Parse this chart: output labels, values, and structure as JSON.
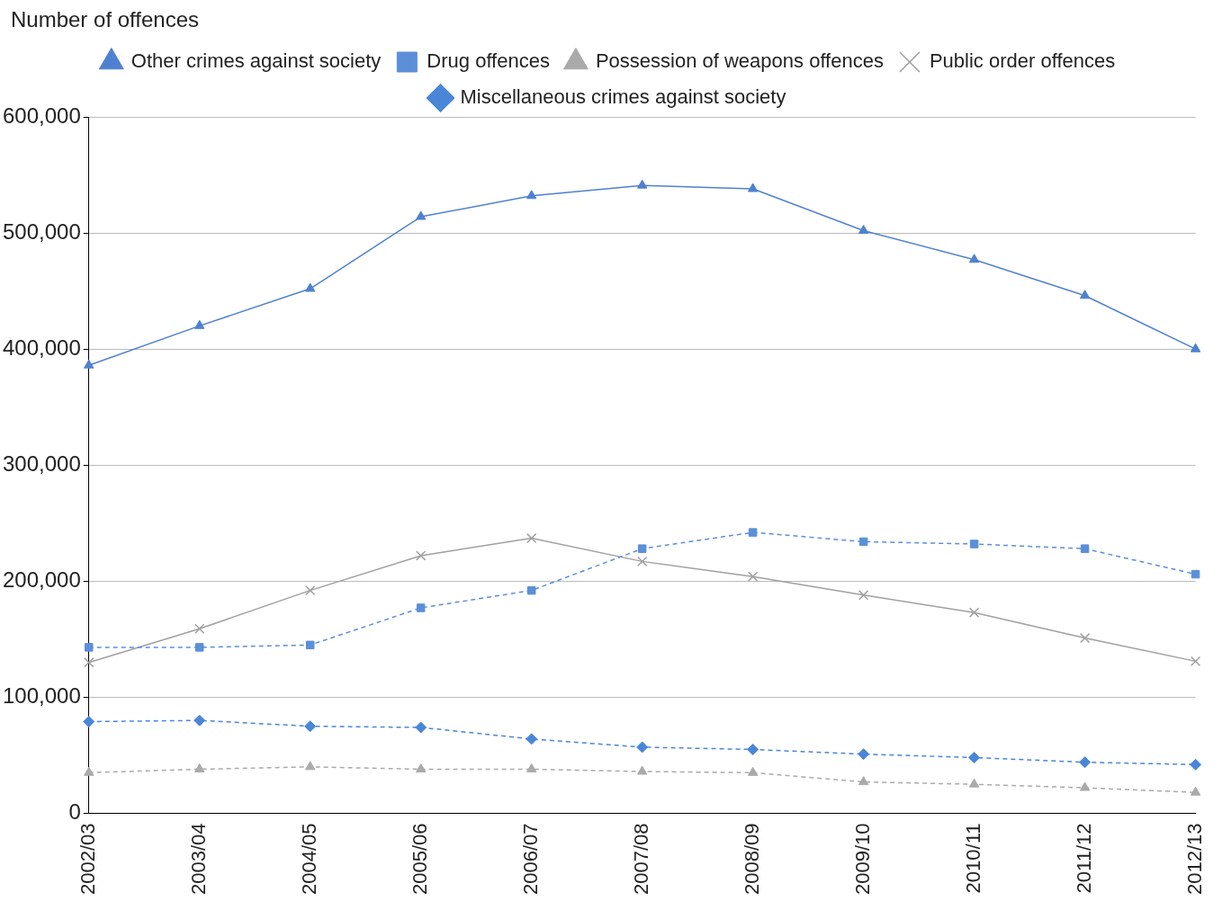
{
  "chart_data": {
    "type": "line",
    "ylabel": "Number of offences",
    "categories": [
      "2002/03",
      "2003/04",
      "2004/05",
      "2005/06",
      "2006/07",
      "2007/08",
      "2008/09",
      "2009/10",
      "2010/11",
      "2011/12",
      "2012/13"
    ],
    "series": [
      {
        "name": "Other crimes against society",
        "color": "#4f81d0",
        "marker": "triangle",
        "line_style": "solid",
        "values": [
          386000,
          420000,
          452000,
          514000,
          532000,
          541000,
          538000,
          502000,
          477000,
          446000,
          400000
        ]
      },
      {
        "name": "Drug offences",
        "color": "#5b8fd8",
        "marker": "square",
        "line_style": "dashed",
        "values": [
          143000,
          143000,
          145000,
          177000,
          192000,
          228000,
          242000,
          234000,
          232000,
          228000,
          206000
        ]
      },
      {
        "name": "Possession of weapons offences",
        "color": "#aaaaaa",
        "marker": "triangle",
        "line_style": "dashed",
        "values": [
          35000,
          38000,
          40000,
          38000,
          38000,
          36000,
          35000,
          27000,
          25000,
          22000,
          18000
        ]
      },
      {
        "name": "Public order offences",
        "color": "#a0a0a0",
        "marker": "cross",
        "line_style": "solid",
        "values": [
          130000,
          159000,
          192000,
          222000,
          237000,
          217000,
          204000,
          188000,
          173000,
          151000,
          131000
        ]
      },
      {
        "name": "Miscellaneous crimes against society",
        "color": "#4a86d8",
        "marker": "diamond",
        "line_style": "dashed",
        "values": [
          79000,
          80000,
          75000,
          74000,
          64000,
          57000,
          55000,
          51000,
          48000,
          44000,
          42000
        ]
      }
    ],
    "ylim": [
      0,
      600000
    ],
    "yticks": [
      0,
      {
        "value": 100000,
        "label": "100,000"
      },
      {
        "value": 200000,
        "label": "200,000"
      },
      {
        "value": 300000,
        "label": "300,000"
      },
      {
        "value": 400000,
        "label": "400,000"
      },
      {
        "value": 500000,
        "label": "500,000"
      },
      {
        "value": 600000,
        "label": "600,000"
      }
    ],
    "grid": "y",
    "legend": "top"
  }
}
